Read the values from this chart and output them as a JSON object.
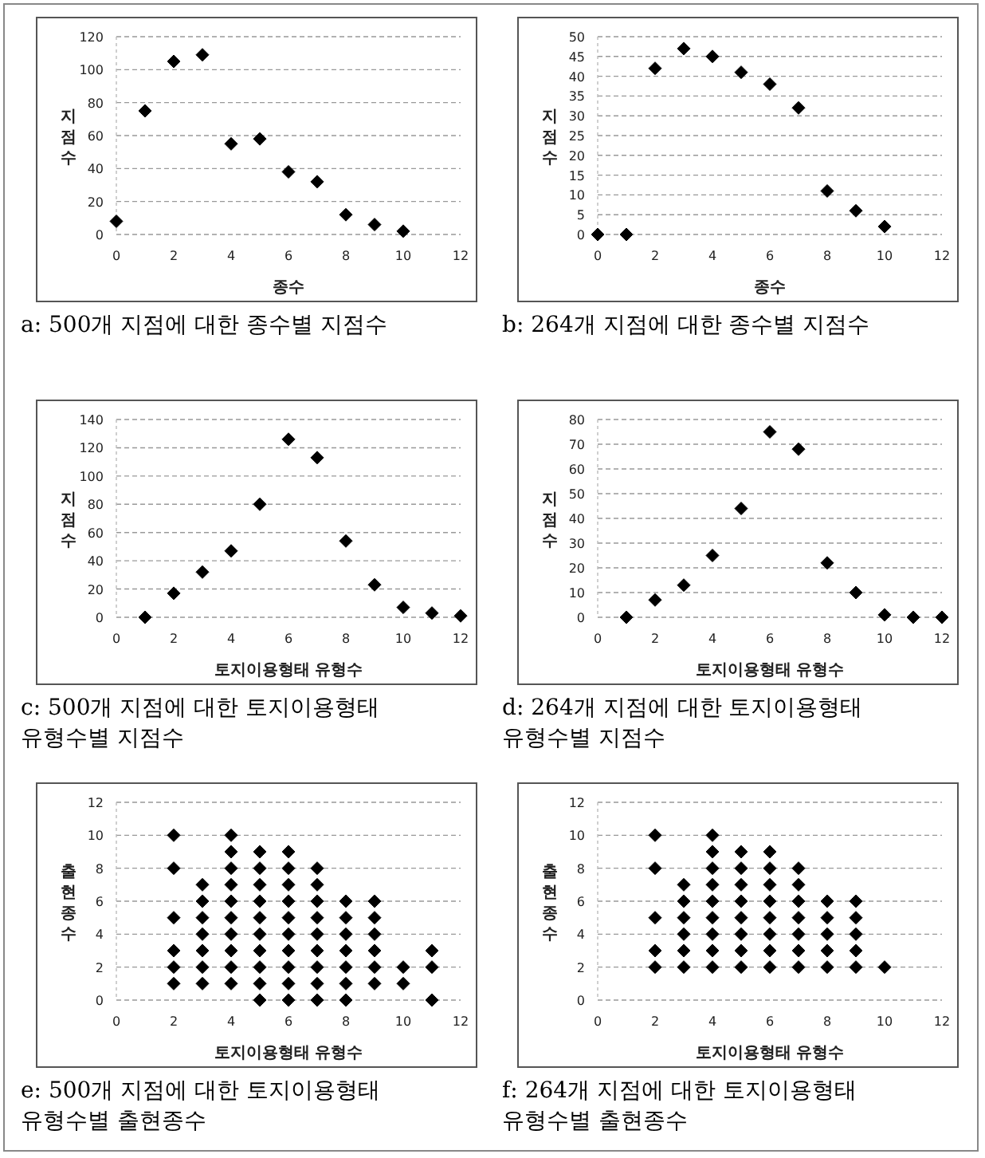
{
  "chart_data": [
    {
      "type": "scatter",
      "title": "a: 500개 지점에 대한 종수별 지점수",
      "xlabel": "종수",
      "ylabel": "지점수",
      "x": [
        0,
        1,
        2,
        3,
        4,
        5,
        6,
        7,
        8,
        9,
        10
      ],
      "values": [
        8,
        75,
        105,
        109,
        55,
        58,
        38,
        32,
        12,
        6,
        2
      ],
      "xlim": [
        0,
        12
      ],
      "ylim": [
        0,
        120
      ],
      "xticks": [
        0,
        2,
        4,
        6,
        8,
        10,
        12
      ],
      "yticks": [
        0,
        20,
        40,
        60,
        80,
        100,
        120
      ],
      "grid": "y",
      "marker": "diamond",
      "color": "#000000"
    },
    {
      "type": "scatter",
      "title": "b: 264개 지점에 대한 종수별 지점수",
      "xlabel": "종수",
      "ylabel": "지점수",
      "x": [
        0,
        1,
        2,
        3,
        4,
        5,
        6,
        7,
        8,
        9,
        10
      ],
      "values": [
        0,
        0,
        42,
        47,
        45,
        41,
        38,
        32,
        11,
        6,
        2
      ],
      "xlim": [
        0,
        12
      ],
      "ylim": [
        0,
        50
      ],
      "xticks": [
        0,
        2,
        4,
        6,
        8,
        10,
        12
      ],
      "yticks": [
        0,
        5,
        10,
        15,
        20,
        25,
        30,
        35,
        40,
        45,
        50
      ],
      "grid": "y",
      "marker": "diamond",
      "color": "#000000"
    },
    {
      "type": "scatter",
      "title": "c: 500개 지점에 대한 토지이용형태 유형수별 지점수",
      "xlabel": "토지이용형태 유형수",
      "ylabel": "지점수",
      "x": [
        1,
        2,
        3,
        4,
        5,
        6,
        7,
        8,
        9,
        10,
        11,
        12
      ],
      "values": [
        0,
        17,
        32,
        47,
        80,
        126,
        113,
        54,
        23,
        7,
        3,
        1
      ],
      "xlim": [
        0,
        12
      ],
      "ylim": [
        0,
        140
      ],
      "xticks": [
        0,
        2,
        4,
        6,
        8,
        10,
        12
      ],
      "yticks": [
        0,
        20,
        40,
        60,
        80,
        100,
        120,
        140
      ],
      "grid": "y",
      "marker": "diamond",
      "color": "#000000"
    },
    {
      "type": "scatter",
      "title": "d: 264개 지점에 대한 토지이용형태 유형수별 지점수",
      "xlabel": "토지이용형태 유형수",
      "ylabel": "지점수",
      "x": [
        1,
        2,
        3,
        4,
        5,
        6,
        7,
        8,
        9,
        10,
        11,
        12
      ],
      "values": [
        0,
        7,
        13,
        25,
        44,
        75,
        68,
        22,
        10,
        1,
        0,
        0
      ],
      "xlim": [
        0,
        12
      ],
      "ylim": [
        0,
        80
      ],
      "xticks": [
        0,
        2,
        4,
        6,
        8,
        10,
        12
      ],
      "yticks": [
        0,
        10,
        20,
        30,
        40,
        50,
        60,
        70,
        80
      ],
      "grid": "y",
      "marker": "diamond",
      "color": "#000000"
    },
    {
      "type": "scatter",
      "title": "e: 500개 지점에 대한 토지이용형태 유형수별 출현종수",
      "xlabel": "토지이용형태 유형수",
      "ylabel": "출현종수",
      "x": [
        2,
        2,
        2,
        2,
        2,
        2,
        3,
        3,
        3,
        3,
        3,
        3,
        3,
        4,
        4,
        4,
        4,
        4,
        4,
        4,
        4,
        4,
        4,
        5,
        5,
        5,
        5,
        5,
        5,
        5,
        5,
        5,
        5,
        6,
        6,
        6,
        6,
        6,
        6,
        6,
        6,
        6,
        6,
        7,
        7,
        7,
        7,
        7,
        7,
        7,
        7,
        7,
        8,
        8,
        8,
        8,
        8,
        8,
        8,
        9,
        9,
        9,
        9,
        9,
        9,
        10,
        10,
        11,
        11,
        11
      ],
      "values": [
        1,
        2,
        3,
        5,
        8,
        10,
        1,
        2,
        3,
        4,
        5,
        6,
        7,
        1,
        2,
        3,
        4,
        5,
        6,
        7,
        8,
        9,
        10,
        0,
        1,
        2,
        3,
        4,
        5,
        6,
        7,
        8,
        9,
        0,
        1,
        2,
        3,
        4,
        5,
        6,
        7,
        8,
        9,
        0,
        1,
        2,
        3,
        4,
        5,
        6,
        7,
        8,
        0,
        1,
        2,
        3,
        4,
        5,
        6,
        1,
        2,
        3,
        4,
        5,
        6,
        1,
        2,
        0,
        2,
        3
      ],
      "xlim": [
        0,
        12
      ],
      "ylim": [
        0,
        12
      ],
      "xticks": [
        0,
        2,
        4,
        6,
        8,
        10,
        12
      ],
      "yticks": [
        0,
        2,
        4,
        6,
        8,
        10,
        12
      ],
      "grid": "y",
      "marker": "diamond",
      "color": "#000000"
    },
    {
      "type": "scatter",
      "title": "f: 264개 지점에 대한 토지이용형태 유형수별 출현종수",
      "xlabel": "토지이용형태 유형수",
      "ylabel": "출현종수",
      "x": [
        2,
        2,
        2,
        2,
        2,
        3,
        3,
        3,
        3,
        3,
        3,
        4,
        4,
        4,
        4,
        4,
        4,
        4,
        4,
        4,
        5,
        5,
        5,
        5,
        5,
        5,
        5,
        5,
        6,
        6,
        6,
        6,
        6,
        6,
        6,
        6,
        7,
        7,
        7,
        7,
        7,
        7,
        7,
        8,
        8,
        8,
        8,
        8,
        9,
        9,
        9,
        9,
        9,
        10
      ],
      "values": [
        2,
        3,
        5,
        8,
        10,
        2,
        3,
        4,
        5,
        6,
        7,
        2,
        3,
        4,
        5,
        6,
        7,
        8,
        9,
        10,
        2,
        3,
        4,
        5,
        6,
        7,
        8,
        9,
        2,
        3,
        4,
        5,
        6,
        7,
        8,
        9,
        2,
        3,
        4,
        5,
        6,
        7,
        8,
        2,
        3,
        4,
        5,
        6,
        2,
        3,
        4,
        5,
        6,
        2
      ],
      "xlim": [
        0,
        12
      ],
      "ylim": [
        0,
        12
      ],
      "xticks": [
        0,
        2,
        4,
        6,
        8,
        10,
        12
      ],
      "yticks": [
        0,
        2,
        4,
        6,
        8,
        10,
        12
      ],
      "grid": "y",
      "marker": "diamond",
      "color": "#000000"
    }
  ]
}
